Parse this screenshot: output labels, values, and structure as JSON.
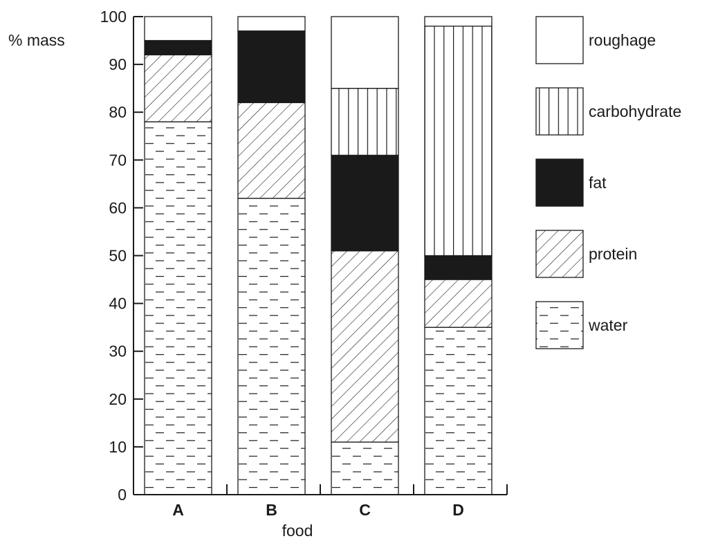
{
  "chart_data": {
    "type": "bar",
    "stacked": true,
    "categories": [
      "A",
      "B",
      "C",
      "D"
    ],
    "series": [
      {
        "name": "water",
        "values": [
          78,
          62,
          11,
          35
        ],
        "pattern": "dashes"
      },
      {
        "name": "protein",
        "values": [
          14,
          20,
          40,
          10
        ],
        "pattern": "diagonal-hatch"
      },
      {
        "name": "fat",
        "values": [
          3,
          15,
          20,
          5
        ],
        "pattern": "solid-black"
      },
      {
        "name": "carbohydrate",
        "values": [
          0,
          0,
          14,
          48
        ],
        "pattern": "vertical-lines"
      },
      {
        "name": "roughage",
        "values": [
          5,
          3,
          15,
          2
        ],
        "pattern": "white"
      }
    ],
    "legend_order": [
      "roughage",
      "carbohydrate",
      "fat",
      "protein",
      "water"
    ],
    "xlabel": "food",
    "ylabel": "% mass",
    "ylim": [
      0,
      100
    ],
    "yticks": [
      0,
      10,
      20,
      30,
      40,
      50,
      60,
      70,
      80,
      90,
      100
    ],
    "grid": false,
    "legend_position": "right",
    "colors": {
      "ink": "#1a1a1a",
      "background": "#ffffff"
    }
  }
}
